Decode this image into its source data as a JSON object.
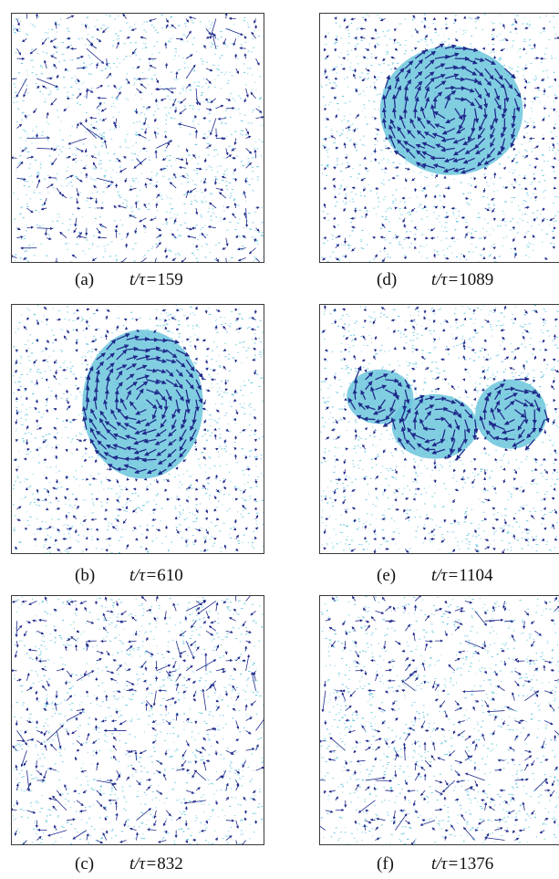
{
  "figure": {
    "panels": [
      {
        "id": "a",
        "label": "(a)",
        "time_value": "159",
        "cluster": "none"
      },
      {
        "id": "b",
        "label": "(b)",
        "time_value": "610",
        "cluster": "single-vortex"
      },
      {
        "id": "c",
        "label": "(c)",
        "time_value": "832",
        "cluster": "none"
      },
      {
        "id": "d",
        "label": "(d)",
        "time_value": "1089",
        "cluster": "single-large"
      },
      {
        "id": "e",
        "label": "(e)",
        "time_value": "1104",
        "cluster": "split"
      },
      {
        "id": "f",
        "label": "(f)",
        "time_value": "1376",
        "cluster": "none"
      }
    ],
    "time_var": "t/τ=",
    "colors": {
      "particles": "#5bc3dc",
      "cluster_fill": "#6cc6dc",
      "arrows": "#1f2a8a",
      "frame": "#3a3a3a"
    }
  }
}
